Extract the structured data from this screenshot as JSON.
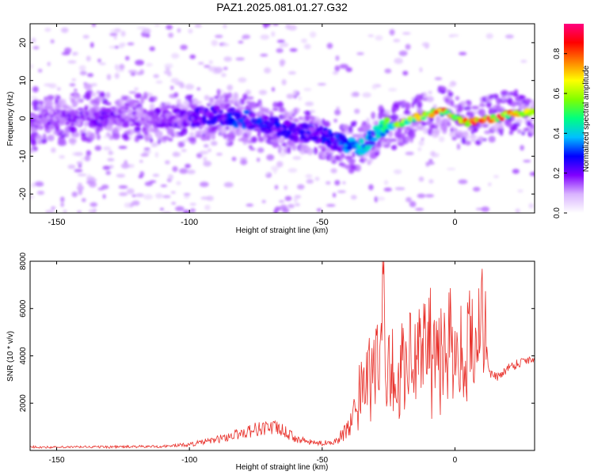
{
  "title": "PAZ1.2025.081.01.27.G32",
  "chart_data": [
    {
      "type": "heatmap",
      "xlabel": "Height of straight line (km)",
      "ylabel": "Frequency (Hz)",
      "xlim": [
        -160,
        30
      ],
      "ylim": [
        -25,
        25
      ],
      "x_ticks": [
        -150,
        -100,
        -50,
        0
      ],
      "y_ticks": [
        -20,
        -10,
        0,
        10,
        20
      ],
      "colorbar": {
        "label": "Normalized spectral amplitude",
        "range": [
          0.0,
          0.95
        ],
        "ticks": [
          0.0,
          0.2,
          0.4,
          0.6,
          0.8
        ],
        "colormap": [
          "#ffffff",
          "#d9b3ff",
          "#8000ff",
          "#0000ff",
          "#00c0ff",
          "#00ff80",
          "#80ff00",
          "#ffff00",
          "#ff8000",
          "#ff0000",
          "#ff0080"
        ]
      },
      "ridge": {
        "x": [
          -160,
          -150,
          -140,
          -130,
          -120,
          -110,
          -100,
          -90,
          -80,
          -70,
          -60,
          -50,
          -45,
          -40,
          -35,
          -30,
          -25,
          -20,
          -15,
          -10,
          -5,
          0,
          5,
          10,
          15,
          20,
          25,
          30
        ],
        "frequency": [
          -1,
          0,
          0,
          0.5,
          0,
          0,
          0,
          1,
          0,
          -1.5,
          -3.5,
          -4.5,
          -6,
          -7,
          -7.5,
          -4,
          -2,
          -1.5,
          0,
          1,
          2,
          0,
          -1,
          -0.5,
          0,
          1,
          1.5,
          1.5
        ],
        "amplitude": [
          0.18,
          0.18,
          0.2,
          0.2,
          0.18,
          0.2,
          0.22,
          0.28,
          0.32,
          0.3,
          0.25,
          0.28,
          0.32,
          0.38,
          0.45,
          0.4,
          0.55,
          0.6,
          0.7,
          0.78,
          0.85,
          0.8,
          0.9,
          0.95,
          0.9,
          0.85,
          0.8,
          0.75
        ]
      }
    },
    {
      "type": "line",
      "xlabel": "Height of straight line (km)",
      "ylabel": "SNR (10 * v/v)",
      "xlim": [
        -160,
        30
      ],
      "ylim": [
        0,
        8000
      ],
      "x_ticks": [
        -150,
        -100,
        -50,
        0
      ],
      "y_ticks": [
        2000,
        4000,
        6000,
        8000
      ],
      "color": "#e8302a",
      "series": [
        {
          "x": [
            -160,
            -150,
            -140,
            -130,
            -120,
            -110,
            -100,
            -95,
            -90,
            -85,
            -80,
            -75,
            -70,
            -65,
            -60,
            -55,
            -50,
            -45,
            -40,
            -38,
            -36,
            -34,
            -32,
            -30,
            -28,
            -27,
            -26,
            -24,
            -22,
            -20,
            -18,
            -16,
            -14,
            -12,
            -10,
            -8,
            -6,
            -4,
            -2,
            0,
            2,
            4,
            6,
            8,
            10,
            11,
            12,
            13,
            14,
            16,
            18,
            20,
            22,
            24,
            26,
            28,
            30
          ],
          "values": [
            150,
            130,
            150,
            150,
            160,
            170,
            250,
            350,
            450,
            600,
            750,
            900,
            1000,
            850,
            500,
            350,
            300,
            400,
            900,
            1500,
            2500,
            3000,
            3400,
            3800,
            4200,
            7800,
            3300,
            3600,
            3500,
            3800,
            4200,
            4000,
            4500,
            4800,
            5200,
            4000,
            3900,
            4600,
            5600,
            3800,
            4200,
            4600,
            5000,
            4800,
            5600,
            5800,
            4200,
            3300,
            3200,
            3100,
            3300,
            3500,
            3600,
            3700,
            3800,
            3850,
            3900
          ]
        }
      ]
    }
  ]
}
